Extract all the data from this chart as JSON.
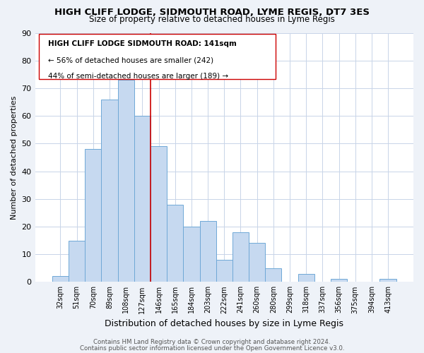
{
  "title1": "HIGH CLIFF LODGE, SIDMOUTH ROAD, LYME REGIS, DT7 3ES",
  "title2": "Size of property relative to detached houses in Lyme Regis",
  "xlabel": "Distribution of detached houses by size in Lyme Regis",
  "ylabel": "Number of detached properties",
  "bar_labels": [
    "32sqm",
    "51sqm",
    "70sqm",
    "89sqm",
    "108sqm",
    "127sqm",
    "146sqm",
    "165sqm",
    "184sqm",
    "203sqm",
    "222sqm",
    "241sqm",
    "260sqm",
    "280sqm",
    "299sqm",
    "318sqm",
    "337sqm",
    "356sqm",
    "375sqm",
    "394sqm",
    "413sqm"
  ],
  "bar_heights": [
    2,
    15,
    48,
    66,
    73,
    60,
    49,
    28,
    20,
    22,
    8,
    18,
    14,
    5,
    0,
    3,
    0,
    1,
    0,
    0,
    1
  ],
  "bar_color": "#c6d9f0",
  "bar_edge_color": "#6fa8d6",
  "vline_bar_index": 6,
  "vline_color": "#cc0000",
  "ylim": [
    0,
    90
  ],
  "yticks": [
    0,
    10,
    20,
    30,
    40,
    50,
    60,
    70,
    80,
    90
  ],
  "annotation_title": "HIGH CLIFF LODGE SIDMOUTH ROAD: 141sqm",
  "annotation_line1": "← 56% of detached houses are smaller (242)",
  "annotation_line2": "44% of semi-detached houses are larger (189) →",
  "footer1": "Contains HM Land Registry data © Crown copyright and database right 2024.",
  "footer2": "Contains public sector information licensed under the Open Government Licence v3.0.",
  "bg_color": "#eef2f8",
  "plot_bg_color": "#ffffff",
  "grid_color": "#c8d4e8",
  "ann_box_edge_color": "#cc0000",
  "ann_box_face_color": "#ffffff"
}
